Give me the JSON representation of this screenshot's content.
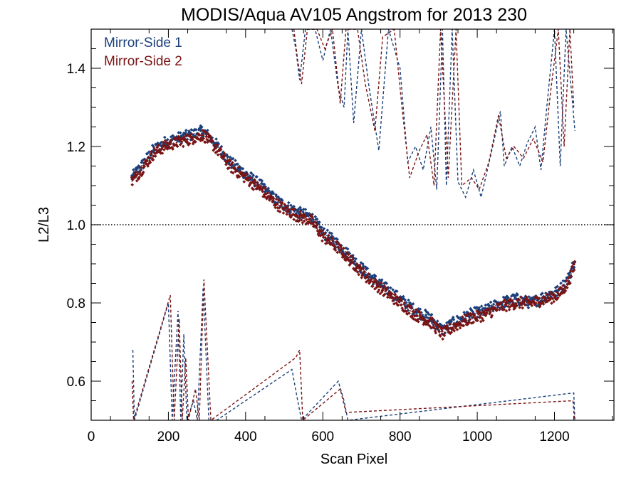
{
  "chart_data": {
    "type": "line",
    "title": "MODIS/Aqua AV105 Angstrom for 2013 230",
    "xlabel": "Scan Pixel",
    "ylabel": "L2/L3",
    "xlim": [
      0,
      1354
    ],
    "ylim": [
      0.5,
      1.5
    ],
    "x_ticks": [
      0,
      200,
      400,
      600,
      800,
      1000,
      1200
    ],
    "y_ticks": [
      0.6,
      0.8,
      1.0,
      1.2,
      1.4
    ],
    "x_tick_labels": [
      "0",
      "200",
      "400",
      "600",
      "800",
      "1000",
      "1200"
    ],
    "y_tick_labels": [
      "0.6",
      "0.8",
      "1.0",
      "1.2",
      "1.4"
    ],
    "reference_line": {
      "y": 1.0,
      "style": "dotted",
      "color": "#000000"
    },
    "grid": false,
    "legend": {
      "placement": "top-left"
    },
    "series": [
      {
        "name": "Mirror-Side 1",
        "color": "#1a3f7a",
        "marker": "diamond",
        "trend": [
          [
            105,
            1.12
          ],
          [
            130,
            1.15
          ],
          [
            160,
            1.19
          ],
          [
            190,
            1.21
          ],
          [
            220,
            1.22
          ],
          [
            260,
            1.23
          ],
          [
            290,
            1.24
          ],
          [
            320,
            1.21
          ],
          [
            360,
            1.16
          ],
          [
            400,
            1.13
          ],
          [
            440,
            1.1
          ],
          [
            470,
            1.07
          ],
          [
            500,
            1.05
          ],
          [
            540,
            1.03
          ],
          [
            570,
            1.02
          ],
          [
            600,
            0.98
          ],
          [
            640,
            0.95
          ],
          [
            680,
            0.91
          ],
          [
            720,
            0.87
          ],
          [
            760,
            0.84
          ],
          [
            800,
            0.81
          ],
          [
            840,
            0.78
          ],
          [
            880,
            0.76
          ],
          [
            910,
            0.73
          ],
          [
            940,
            0.75
          ],
          [
            980,
            0.77
          ],
          [
            1020,
            0.78
          ],
          [
            1060,
            0.8
          ],
          [
            1100,
            0.81
          ],
          [
            1140,
            0.8
          ],
          [
            1180,
            0.82
          ],
          [
            1210,
            0.83
          ],
          [
            1235,
            0.86
          ],
          [
            1253,
            0.91
          ]
        ],
        "upper_dashed": [
          [
            520,
            1.5
          ],
          [
            530,
            1.45
          ],
          [
            540,
            1.37
          ],
          [
            555,
            1.5
          ],
          [
            580,
            1.5
          ],
          [
            600,
            1.42
          ],
          [
            620,
            1.5
          ],
          [
            640,
            1.35
          ],
          [
            655,
            1.3
          ],
          [
            665,
            1.5
          ],
          [
            680,
            1.26
          ],
          [
            700,
            1.5
          ],
          [
            720,
            1.35
          ],
          [
            745,
            1.19
          ],
          [
            770,
            1.5
          ],
          [
            800,
            1.4
          ],
          [
            820,
            1.16
          ],
          [
            840,
            1.2
          ],
          [
            860,
            1.14
          ],
          [
            880,
            1.25
          ],
          [
            895,
            1.09
          ],
          [
            910,
            1.5
          ],
          [
            920,
            1.1
          ],
          [
            935,
            1.5
          ],
          [
            950,
            1.11
          ],
          [
            970,
            1.07
          ],
          [
            990,
            1.14
          ],
          [
            1010,
            1.07
          ],
          [
            1040,
            1.2
          ],
          [
            1060,
            1.29
          ],
          [
            1070,
            1.15
          ],
          [
            1090,
            1.2
          ],
          [
            1110,
            1.15
          ],
          [
            1130,
            1.21
          ],
          [
            1150,
            1.25
          ],
          [
            1165,
            1.14
          ],
          [
            1180,
            1.3
          ],
          [
            1200,
            1.5
          ],
          [
            1215,
            1.15
          ],
          [
            1230,
            1.5
          ],
          [
            1253,
            1.24
          ]
        ],
        "lower_dashed": [
          [
            108,
            0.68
          ],
          [
            112,
            0.5
          ],
          [
            200,
            0.8
          ],
          [
            210,
            0.5
          ],
          [
            225,
            0.78
          ],
          [
            232,
            0.5
          ],
          [
            240,
            0.72
          ],
          [
            248,
            0.5
          ],
          [
            265,
            0.55
          ],
          [
            275,
            0.5
          ],
          [
            290,
            0.84
          ],
          [
            305,
            0.5
          ],
          [
            325,
            0.5
          ],
          [
            520,
            0.63
          ],
          [
            535,
            0.55
          ],
          [
            545,
            0.5
          ],
          [
            640,
            0.6
          ],
          [
            655,
            0.55
          ],
          [
            665,
            0.5
          ],
          [
            1250,
            0.57
          ],
          [
            1253,
            0.5
          ]
        ]
      },
      {
        "name": "Mirror-Side 2",
        "color": "#7a1414",
        "marker": "diamond",
        "trend": [
          [
            105,
            1.11
          ],
          [
            130,
            1.14
          ],
          [
            160,
            1.18
          ],
          [
            190,
            1.2
          ],
          [
            220,
            1.21
          ],
          [
            260,
            1.22
          ],
          [
            290,
            1.23
          ],
          [
            320,
            1.2
          ],
          [
            360,
            1.15
          ],
          [
            400,
            1.12
          ],
          [
            440,
            1.09
          ],
          [
            470,
            1.06
          ],
          [
            500,
            1.04
          ],
          [
            540,
            1.02
          ],
          [
            570,
            1.01
          ],
          [
            600,
            0.97
          ],
          [
            640,
            0.94
          ],
          [
            680,
            0.9
          ],
          [
            720,
            0.86
          ],
          [
            760,
            0.83
          ],
          [
            800,
            0.8
          ],
          [
            840,
            0.77
          ],
          [
            880,
            0.75
          ],
          [
            910,
            0.72
          ],
          [
            940,
            0.74
          ],
          [
            980,
            0.76
          ],
          [
            1020,
            0.77
          ],
          [
            1060,
            0.79
          ],
          [
            1100,
            0.8
          ],
          [
            1140,
            0.8
          ],
          [
            1180,
            0.81
          ],
          [
            1210,
            0.82
          ],
          [
            1235,
            0.85
          ],
          [
            1253,
            0.9
          ]
        ],
        "upper_dashed": [
          [
            525,
            1.5
          ],
          [
            535,
            1.42
          ],
          [
            545,
            1.36
          ],
          [
            560,
            1.5
          ],
          [
            585,
            1.5
          ],
          [
            605,
            1.45
          ],
          [
            625,
            1.5
          ],
          [
            645,
            1.31
          ],
          [
            660,
            1.5
          ],
          [
            690,
            1.5
          ],
          [
            710,
            1.36
          ],
          [
            735,
            1.24
          ],
          [
            755,
            1.48
          ],
          [
            785,
            1.5
          ],
          [
            805,
            1.3
          ],
          [
            825,
            1.12
          ],
          [
            850,
            1.19
          ],
          [
            870,
            1.23
          ],
          [
            888,
            1.1
          ],
          [
            905,
            1.5
          ],
          [
            925,
            1.12
          ],
          [
            945,
            1.5
          ],
          [
            960,
            1.1
          ],
          [
            985,
            1.12
          ],
          [
            1005,
            1.09
          ],
          [
            1030,
            1.16
          ],
          [
            1055,
            1.28
          ],
          [
            1075,
            1.17
          ],
          [
            1095,
            1.2
          ],
          [
            1120,
            1.17
          ],
          [
            1145,
            1.22
          ],
          [
            1170,
            1.16
          ],
          [
            1190,
            1.34
          ],
          [
            1210,
            1.5
          ],
          [
            1225,
            1.2
          ],
          [
            1240,
            1.5
          ],
          [
            1250,
            1.3
          ]
        ],
        "lower_dashed": [
          [
            106,
            0.6
          ],
          [
            110,
            0.5
          ],
          [
            205,
            0.82
          ],
          [
            215,
            0.5
          ],
          [
            228,
            0.76
          ],
          [
            236,
            0.5
          ],
          [
            245,
            0.66
          ],
          [
            252,
            0.5
          ],
          [
            270,
            0.58
          ],
          [
            280,
            0.5
          ],
          [
            292,
            0.86
          ],
          [
            310,
            0.5
          ],
          [
            530,
            0.66
          ],
          [
            540,
            0.68
          ],
          [
            548,
            0.5
          ],
          [
            645,
            0.58
          ],
          [
            660,
            0.52
          ],
          [
            1248,
            0.55
          ],
          [
            1252,
            0.5
          ]
        ]
      }
    ]
  }
}
